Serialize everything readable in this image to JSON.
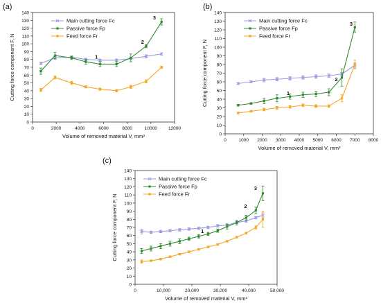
{
  "panels": [
    {
      "letter": "(a)"
    },
    {
      "letter": "(b)"
    },
    {
      "letter": "(c)"
    }
  ],
  "chart_data": [
    {
      "type": "line",
      "xlabel": "Volume of removed material V, mm³",
      "ylabel": "Cutting force component F, N",
      "xlim": [
        0,
        12000
      ],
      "ylim": [
        0,
        140
      ],
      "xticks": [
        0,
        2000,
        4000,
        6000,
        8000,
        10000,
        12000
      ],
      "xtick_labels": [
        "0",
        "2000",
        "4000",
        "6000",
        "8000",
        "10000",
        "12000"
      ],
      "yticks": [
        0,
        10,
        20,
        30,
        40,
        50,
        60,
        70,
        80,
        90,
        100,
        110,
        120,
        130,
        140
      ],
      "legend_position": "top-left",
      "series": [
        {
          "name": "Main cutting force Fc",
          "color": "#9a9ae0",
          "marker": "cross",
          "x": [
            700,
            1900,
            3300,
            4500,
            5700,
            7100,
            8300,
            9600,
            10900
          ],
          "y": [
            75,
            82,
            83,
            80,
            79,
            79,
            81,
            84,
            87
          ],
          "err": [
            1.5,
            2,
            1.5,
            1.5,
            1.5,
            1.5,
            1.5,
            2,
            1.5
          ]
        },
        {
          "name": "Passive force Fp",
          "color": "#2e8b2e",
          "marker": "square",
          "x": [
            700,
            1900,
            3300,
            4500,
            5700,
            7100,
            8300,
            9600,
            10900
          ],
          "y": [
            65,
            85,
            82,
            77,
            74,
            74,
            82,
            97,
            128
          ],
          "err": [
            4,
            4,
            2,
            3,
            3,
            3,
            5,
            2,
            4
          ]
        },
        {
          "name": "Feed force Fr",
          "color": "#f5a623",
          "marker": "square",
          "x": [
            700,
            1900,
            3300,
            4500,
            5700,
            7100,
            8300,
            9600,
            10900
          ],
          "y": [
            41,
            57,
            50,
            45,
            42,
            40,
            45,
            52,
            70
          ],
          "err": [
            2,
            2,
            2,
            1.5,
            1.5,
            1.5,
            2,
            2,
            1.5
          ]
        }
      ],
      "annotations": [
        {
          "text": "1",
          "x": 5400,
          "y": 81
        },
        {
          "text": "2",
          "x": 9300,
          "y": 100
        },
        {
          "text": "3",
          "x": 10300,
          "y": 131
        }
      ]
    },
    {
      "type": "line",
      "xlabel": "Volume of removed material V, mm³",
      "ylabel": "Cutting force component F, N",
      "xlim": [
        0,
        8000
      ],
      "ylim": [
        0,
        140
      ],
      "xticks": [
        0,
        1000,
        2000,
        3000,
        4000,
        5000,
        6000,
        7000,
        8000
      ],
      "xtick_labels": [
        "0",
        "1000",
        "2000",
        "3000",
        "4000",
        "5000",
        "6000",
        "7000",
        "8000"
      ],
      "yticks": [
        0,
        10,
        20,
        30,
        40,
        50,
        60,
        70,
        80,
        90,
        100,
        110,
        120,
        130,
        140
      ],
      "legend_position": "top-left",
      "series": [
        {
          "name": "Main cutting force Fc",
          "color": "#9a9ae0",
          "marker": "cross",
          "x": [
            700,
            1400,
            2100,
            2800,
            3500,
            4200,
            4900,
            5600,
            6300,
            7000
          ],
          "y": [
            58,
            60,
            62,
            63,
            64,
            65,
            66,
            67,
            69,
            79
          ],
          "err": [
            1,
            1,
            2,
            2,
            2,
            2,
            2,
            2,
            2,
            3
          ]
        },
        {
          "name": "Passive force Fp",
          "color": "#2e8b2e",
          "marker": "square",
          "x": [
            700,
            1400,
            2100,
            2800,
            3500,
            4200,
            4900,
            5600,
            6300,
            7000
          ],
          "y": [
            33,
            35,
            38,
            41,
            43,
            45,
            46,
            48,
            65,
            123
          ],
          "err": [
            1,
            1,
            3,
            4,
            3,
            3,
            3,
            4,
            10,
            6
          ]
        },
        {
          "name": "Feed force Fr",
          "color": "#f5a623",
          "marker": "square",
          "x": [
            700,
            1400,
            2100,
            2800,
            3500,
            4200,
            4900,
            5600,
            6300,
            7000
          ],
          "y": [
            24,
            26,
            28,
            30,
            31,
            33,
            32,
            32,
            41,
            80
          ],
          "err": [
            1,
            1,
            1.5,
            1.5,
            1.5,
            1.5,
            1.5,
            1.5,
            4,
            5
          ]
        }
      ],
      "annotations": [
        {
          "text": "1",
          "x": 3400,
          "y": 45
        },
        {
          "text": "2",
          "x": 6000,
          "y": 61
        },
        {
          "text": "3",
          "x": 6800,
          "y": 125
        }
      ]
    },
    {
      "type": "line",
      "xlabel": "Volume of removed material V, mm³",
      "ylabel": "Cutting force component F, N",
      "xlim": [
        0,
        50000
      ],
      "ylim": [
        0,
        140
      ],
      "xticks": [
        0,
        10000,
        20000,
        30000,
        40000,
        50000
      ],
      "xtick_labels": [
        "0",
        "10,000",
        "20,000",
        "30,000",
        "40,000",
        "50,000"
      ],
      "yticks": [
        0,
        10,
        20,
        30,
        40,
        50,
        60,
        70,
        80,
        90,
        100,
        110,
        120,
        130,
        140
      ],
      "legend_position": "top-left",
      "series": [
        {
          "name": "Main cutting force Fc",
          "color": "#9a9ae0",
          "marker": "cross",
          "x": [
            2300,
            5600,
            9000,
            12300,
            15700,
            19000,
            22400,
            25700,
            29100,
            32400,
            35800,
            39100,
            42500,
            45000
          ],
          "y": [
            65,
            64,
            65,
            66,
            67,
            68,
            69,
            70,
            72,
            73,
            76,
            78,
            82,
            85
          ],
          "err": [
            3,
            1.5,
            1.5,
            1.5,
            1.5,
            1.5,
            1.5,
            1.5,
            1.5,
            1.5,
            1.5,
            1.5,
            1.5,
            3
          ]
        },
        {
          "name": "Passive force Fp",
          "color": "#2e8b2e",
          "marker": "square",
          "x": [
            2300,
            5600,
            9000,
            12300,
            15700,
            19000,
            22400,
            25700,
            29100,
            32400,
            35800,
            39100,
            42500,
            45000
          ],
          "y": [
            41,
            44,
            47,
            50,
            53,
            56,
            59,
            62,
            66,
            71,
            76,
            82,
            91,
            112
          ],
          "err": [
            3,
            3,
            3,
            3,
            3,
            2,
            2,
            2,
            2,
            3,
            3,
            3,
            4,
            9
          ]
        },
        {
          "name": "Feed force Fr",
          "color": "#f5a623",
          "marker": "square",
          "x": [
            2300,
            5600,
            9000,
            12300,
            15700,
            19000,
            22400,
            25700,
            29100,
            32400,
            35800,
            39100,
            42500,
            45000
          ],
          "y": [
            28,
            29,
            31,
            34,
            37,
            40,
            43,
            46,
            49,
            53,
            58,
            63,
            70,
            80
          ],
          "err": [
            2,
            1,
            1,
            1,
            1,
            1,
            1,
            1,
            1,
            1,
            1,
            1,
            2,
            10
          ]
        }
      ],
      "annotations": [
        {
          "text": "1",
          "x": 23700,
          "y": 63
        },
        {
          "text": "2",
          "x": 38900,
          "y": 94
        },
        {
          "text": "3",
          "x": 42400,
          "y": 116
        }
      ]
    }
  ]
}
